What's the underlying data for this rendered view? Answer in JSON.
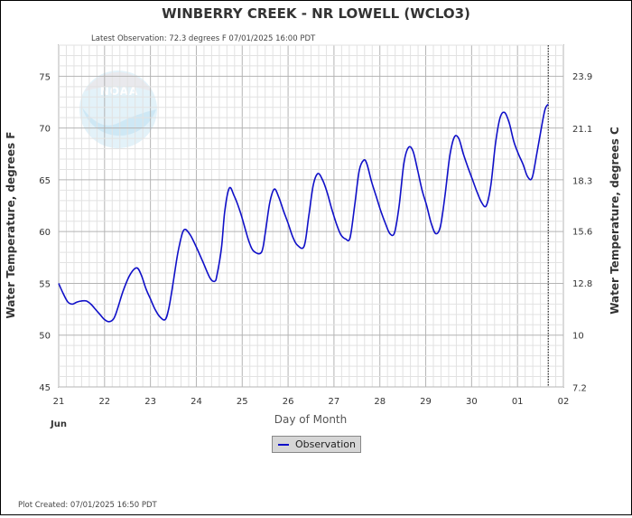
{
  "chart_data": {
    "type": "line",
    "title": "WINBERRY CREEK - NR LOWELL  (WCLO3)",
    "subtitle": "Latest Observation: 72.3 degrees F 07/01/2025 16:00 PDT",
    "xlabel": "Day of Month",
    "ylabel": "Water Temperature, degrees F",
    "ylabel_right": "Water Temperature, degrees C",
    "footer": "Plot Created: 07/01/2025 16:50 PDT",
    "month_label": "Jun",
    "x_ticks": [
      "21",
      "22",
      "23",
      "24",
      "25",
      "26",
      "27",
      "28",
      "29",
      "30",
      "01",
      "02"
    ],
    "y_ticks": [
      45,
      50,
      55,
      60,
      65,
      70,
      75
    ],
    "y_ticks_right": [
      "7.2",
      "10",
      "12.8",
      "15.6",
      "18.3",
      "21.1",
      "23.9"
    ],
    "xlim_days": [
      0,
      11
    ],
    "ylim": [
      45,
      78
    ],
    "grid": true,
    "legend_position": "bottom-center",
    "latest_obs_day": 10.67,
    "series": [
      {
        "name": "Observation",
        "color": "#1010c8",
        "points": [
          [
            0.0,
            55.0
          ],
          [
            0.1,
            54.0
          ],
          [
            0.2,
            53.2
          ],
          [
            0.3,
            53.0
          ],
          [
            0.4,
            53.2
          ],
          [
            0.5,
            53.3
          ],
          [
            0.6,
            53.3
          ],
          [
            0.7,
            53.0
          ],
          [
            0.8,
            52.5
          ],
          [
            0.9,
            52.0
          ],
          [
            1.0,
            51.5
          ],
          [
            1.1,
            51.3
          ],
          [
            1.2,
            51.6
          ],
          [
            1.28,
            52.5
          ],
          [
            1.4,
            54.2
          ],
          [
            1.55,
            55.8
          ],
          [
            1.7,
            56.5
          ],
          [
            1.8,
            55.8
          ],
          [
            1.9,
            54.5
          ],
          [
            2.0,
            53.5
          ],
          [
            2.1,
            52.5
          ],
          [
            2.2,
            51.8
          ],
          [
            2.32,
            51.5
          ],
          [
            2.4,
            52.6
          ],
          [
            2.5,
            55.2
          ],
          [
            2.6,
            58.0
          ],
          [
            2.72,
            60.1
          ],
          [
            2.85,
            59.8
          ],
          [
            3.0,
            58.5
          ],
          [
            3.15,
            57.0
          ],
          [
            3.3,
            55.5
          ],
          [
            3.4,
            55.2
          ],
          [
            3.45,
            55.8
          ],
          [
            3.55,
            58.5
          ],
          [
            3.62,
            62.0
          ],
          [
            3.72,
            64.2
          ],
          [
            3.82,
            63.5
          ],
          [
            3.95,
            62.0
          ],
          [
            4.05,
            60.5
          ],
          [
            4.15,
            59.0
          ],
          [
            4.25,
            58.1
          ],
          [
            4.42,
            58.0
          ],
          [
            4.5,
            59.8
          ],
          [
            4.6,
            62.8
          ],
          [
            4.7,
            64.1
          ],
          [
            4.8,
            63.3
          ],
          [
            4.9,
            62.0
          ],
          [
            5.0,
            60.8
          ],
          [
            5.1,
            59.5
          ],
          [
            5.2,
            58.7
          ],
          [
            5.35,
            58.6
          ],
          [
            5.45,
            61.5
          ],
          [
            5.55,
            64.5
          ],
          [
            5.65,
            65.6
          ],
          [
            5.75,
            65.0
          ],
          [
            5.85,
            63.8
          ],
          [
            5.95,
            62.2
          ],
          [
            6.05,
            60.8
          ],
          [
            6.15,
            59.7
          ],
          [
            6.25,
            59.3
          ],
          [
            6.35,
            59.4
          ],
          [
            6.45,
            62.5
          ],
          [
            6.55,
            65.9
          ],
          [
            6.65,
            66.9
          ],
          [
            6.72,
            66.5
          ],
          [
            6.82,
            64.8
          ],
          [
            6.92,
            63.4
          ],
          [
            7.02,
            62.0
          ],
          [
            7.12,
            60.8
          ],
          [
            7.22,
            59.8
          ],
          [
            7.32,
            59.9
          ],
          [
            7.42,
            62.5
          ],
          [
            7.52,
            66.5
          ],
          [
            7.62,
            68.1
          ],
          [
            7.72,
            67.8
          ],
          [
            7.82,
            66.0
          ],
          [
            7.92,
            64.0
          ],
          [
            8.02,
            62.5
          ],
          [
            8.12,
            60.8
          ],
          [
            8.22,
            59.8
          ],
          [
            8.32,
            60.5
          ],
          [
            8.42,
            63.5
          ],
          [
            8.52,
            67.2
          ],
          [
            8.62,
            69.1
          ],
          [
            8.72,
            69.0
          ],
          [
            8.82,
            67.5
          ],
          [
            8.92,
            66.2
          ],
          [
            9.02,
            65.0
          ],
          [
            9.12,
            63.8
          ],
          [
            9.22,
            62.8
          ],
          [
            9.32,
            62.5
          ],
          [
            9.42,
            64.5
          ],
          [
            9.52,
            68.5
          ],
          [
            9.62,
            71.0
          ],
          [
            9.72,
            71.5
          ],
          [
            9.82,
            70.5
          ],
          [
            9.92,
            68.7
          ],
          [
            10.02,
            67.5
          ],
          [
            10.12,
            66.5
          ],
          [
            10.22,
            65.3
          ],
          [
            10.32,
            65.2
          ],
          [
            10.42,
            67.5
          ],
          [
            10.52,
            70.0
          ],
          [
            10.6,
            71.8
          ],
          [
            10.67,
            72.3
          ]
        ]
      }
    ]
  }
}
